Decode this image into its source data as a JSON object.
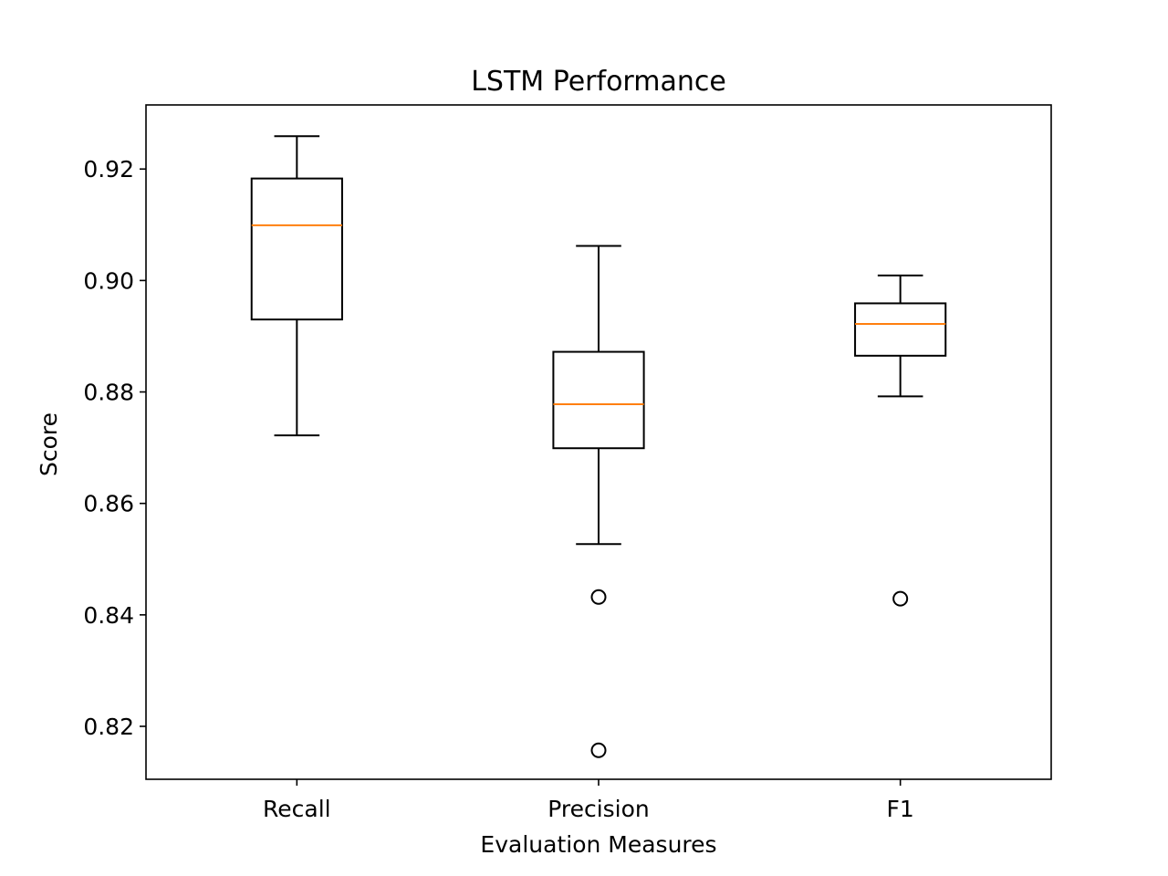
{
  "chart_data": {
    "type": "boxplot",
    "title": "LSTM Performance",
    "xlabel": "Evaluation Measures",
    "ylabel": "Score",
    "ylim": [
      0.8105,
      0.9315
    ],
    "yticks": [
      0.82,
      0.84,
      0.86,
      0.88,
      0.9,
      0.92
    ],
    "ytick_labels": [
      "0.82",
      "0.84",
      "0.86",
      "0.88",
      "0.90",
      "0.92"
    ],
    "categories": [
      "Recall",
      "Precision",
      "F1"
    ],
    "boxes": [
      {
        "name": "Recall",
        "whisker_low": 0.8722,
        "q1": 0.893,
        "median": 0.9099,
        "q3": 0.9183,
        "whisker_high": 0.9259,
        "outliers": []
      },
      {
        "name": "Precision",
        "whisker_low": 0.8527,
        "q1": 0.8699,
        "median": 0.8778,
        "q3": 0.8872,
        "whisker_high": 0.9062,
        "outliers": [
          0.8432,
          0.8157
        ]
      },
      {
        "name": "F1",
        "whisker_low": 0.8792,
        "q1": 0.8865,
        "median": 0.8922,
        "q3": 0.8959,
        "whisker_high": 0.9009,
        "outliers": [
          0.8429
        ]
      }
    ],
    "grid": false,
    "colors": {
      "box": "#000000",
      "median": "#ff7f0e",
      "outlier_edge": "#000000"
    }
  }
}
